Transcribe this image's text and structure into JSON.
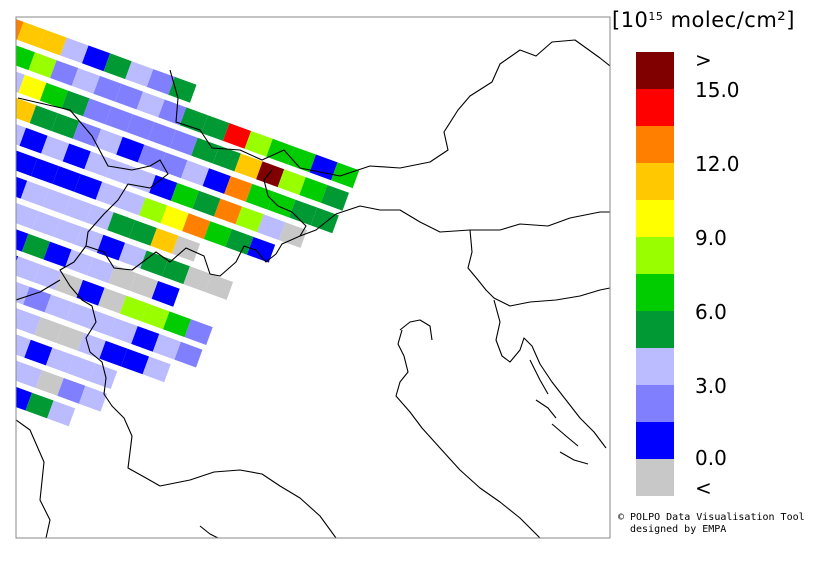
{
  "legend": {
    "unit_prefix": "[10",
    "unit_exp": "15",
    "unit_suffix": " molec/cm²]",
    "labels": [
      ">",
      "15.0",
      "12.0",
      "9.0",
      "6.0",
      "3.0",
      "0.0",
      "<"
    ],
    "colors": [
      "#800000",
      "#ff0000",
      "#ff8000",
      "#ffc800",
      "#ffff00",
      "#99ff00",
      "#00cc00",
      "#009933",
      "#bbbbff",
      "#8080ff",
      "#0000ff",
      "#c8c8c8"
    ]
  },
  "credit": {
    "line1": "© POLPO Data Visualisation Tool",
    "line2": "designed by EMPA"
  },
  "swaths": [
    [
      2,
      3,
      3,
      8,
      10,
      7,
      8,
      9,
      7
    ],
    [
      7,
      6,
      5,
      9,
      8,
      9,
      9,
      8,
      9,
      7,
      7,
      1,
      5,
      6,
      6,
      10,
      6
    ],
    [
      6,
      8,
      4,
      6,
      7,
      9,
      9,
      9,
      9,
      9,
      7,
      7,
      3,
      0,
      5,
      6,
      7
    ],
    [
      9,
      6,
      3,
      7,
      7,
      9,
      8,
      10,
      9,
      9,
      8,
      10,
      2,
      6,
      6,
      7,
      7
    ],
    [
      8,
      7,
      8,
      10,
      8,
      10,
      8,
      8,
      8,
      10,
      6,
      7,
      2,
      5,
      8,
      11
    ],
    [
      11,
      10,
      7,
      10,
      10,
      10,
      10,
      8,
      8,
      5,
      4,
      2,
      6,
      7,
      10
    ],
    [
      9,
      9,
      9,
      10,
      8,
      8,
      8,
      8,
      7,
      7,
      3,
      11
    ],
    [
      9,
      9,
      8,
      8,
      8,
      8,
      8,
      8,
      10,
      8,
      7,
      7,
      11,
      11
    ],
    [
      8,
      8,
      8,
      8,
      10,
      7,
      10,
      8,
      8,
      11,
      11,
      10
    ],
    [
      10,
      10,
      6,
      8,
      10,
      8,
      8,
      11,
      10,
      11,
      5,
      5,
      6,
      9
    ],
    [
      8,
      8,
      8,
      10,
      8,
      8,
      9,
      8,
      8,
      8,
      8,
      10,
      8,
      9
    ],
    [
      9,
      9,
      8,
      8,
      8,
      8,
      8,
      11,
      11,
      8,
      10,
      10,
      8
    ],
    [
      8,
      8,
      8,
      8,
      10,
      8,
      8,
      10,
      8,
      8,
      8
    ],
    [
      10,
      8,
      8,
      10,
      8,
      10,
      8,
      8,
      11,
      9,
      8
    ],
    [
      11,
      11,
      10,
      10,
      8,
      8,
      7,
      10,
      7,
      8
    ],
    [
      11,
      11,
      10,
      8,
      8,
      7
    ]
  ]
}
